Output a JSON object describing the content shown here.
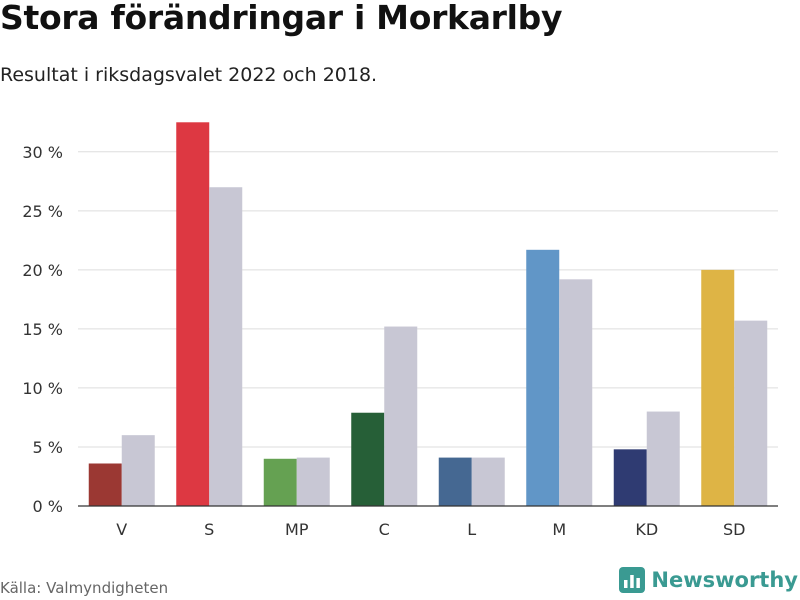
{
  "header": {
    "title": "Stora förändringar i Morkarlby",
    "subtitle": "Resultat i riksdagsvalet 2022 och 2018."
  },
  "footer": {
    "source": "Källa: Valmyndigheten",
    "brand": "Newsworthy",
    "brand_icon": "bar-chart-logo-icon",
    "brand_color": "#3a9a92"
  },
  "chart_data": {
    "type": "bar",
    "title": "Stora förändringar i Morkarlby",
    "subtitle": "Resultat i riksdagsvalet 2022 och 2018.",
    "xlabel": "",
    "ylabel": "",
    "ylim": [
      0,
      31
    ],
    "yticks": [
      0,
      5,
      10,
      15,
      20,
      25,
      30
    ],
    "ytick_labels": [
      "0 %",
      "5 %",
      "10 %",
      "15 %",
      "20 %",
      "25 %",
      "30 %"
    ],
    "grid": true,
    "legend": "none",
    "categories": [
      "V",
      "S",
      "MP",
      "C",
      "L",
      "M",
      "KD",
      "SD"
    ],
    "series": [
      {
        "name": "2022",
        "values": [
          3.6,
          32.5,
          4.0,
          7.9,
          4.1,
          21.7,
          4.8,
          20.0
        ],
        "colors": [
          "#9b3833",
          "#dd3842",
          "#65a152",
          "#265f37",
          "#456892",
          "#6196c7",
          "#2f3b72",
          "#deb445"
        ]
      },
      {
        "name": "2018",
        "values": [
          6.0,
          27.0,
          4.1,
          15.2,
          4.1,
          19.2,
          8.0,
          15.7
        ],
        "color": "#c8c7d4"
      }
    ]
  }
}
